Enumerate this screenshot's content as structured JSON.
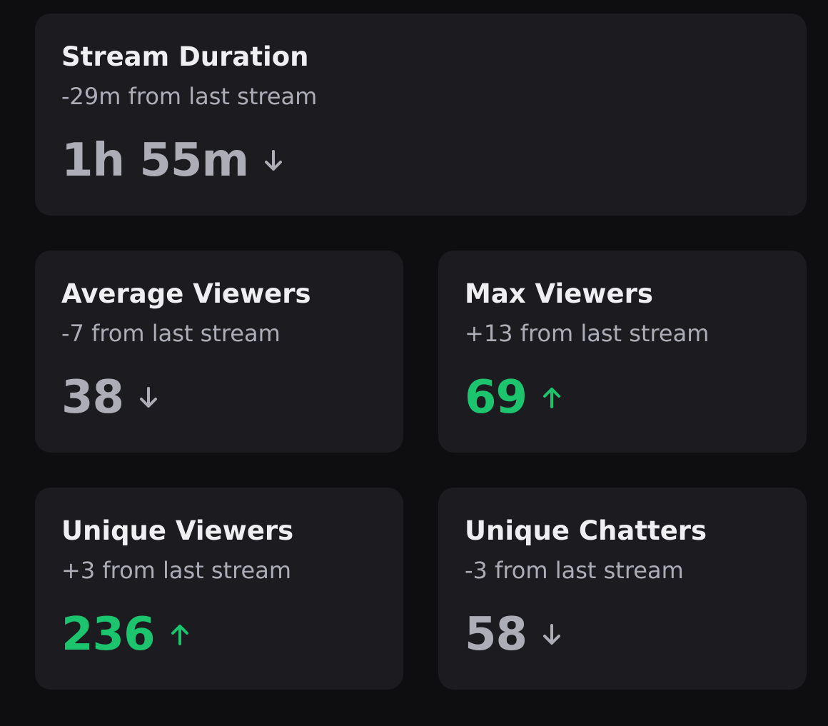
{
  "cards": [
    {
      "title": "Stream Duration",
      "change": "-29m from last stream",
      "value": "1h 55m",
      "trend": "down"
    },
    {
      "title": "Average Viewers",
      "change": "-7 from last stream",
      "value": "38",
      "trend": "down"
    },
    {
      "title": "Max Viewers",
      "change": "+13 from last stream",
      "value": "69",
      "trend": "up"
    },
    {
      "title": "Unique Viewers",
      "change": "+3 from last stream",
      "value": "236",
      "trend": "up"
    },
    {
      "title": "Unique Chatters",
      "change": "-3 from last stream",
      "value": "58",
      "trend": "down"
    }
  ],
  "colors": {
    "up": "#1dc46e",
    "down": "#adadb8"
  }
}
